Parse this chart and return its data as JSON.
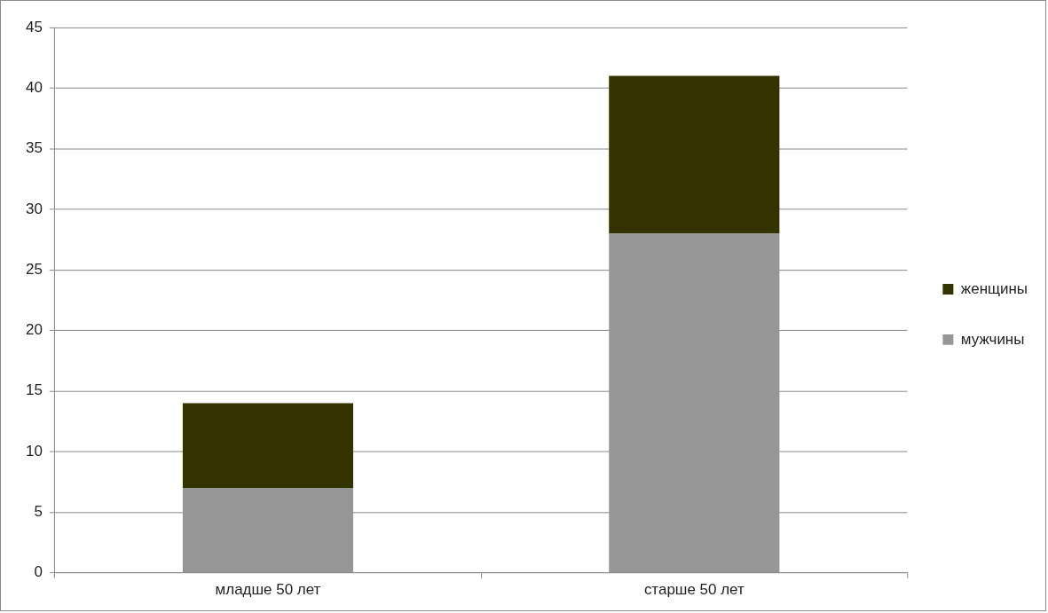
{
  "chart_data": {
    "type": "bar",
    "stacked": true,
    "categories": [
      "младше 50 лет",
      "старше 50 лет"
    ],
    "series": [
      {
        "name": "мужчины",
        "color": "#969696",
        "values": [
          7,
          28
        ]
      },
      {
        "name": "женщины",
        "color": "#333300",
        "values": [
          7,
          13
        ]
      }
    ],
    "ylim": [
      0,
      45
    ],
    "yticks": [
      0,
      5,
      10,
      15,
      20,
      25,
      30,
      35,
      40,
      45
    ],
    "grid": "y",
    "legend": "right"
  }
}
